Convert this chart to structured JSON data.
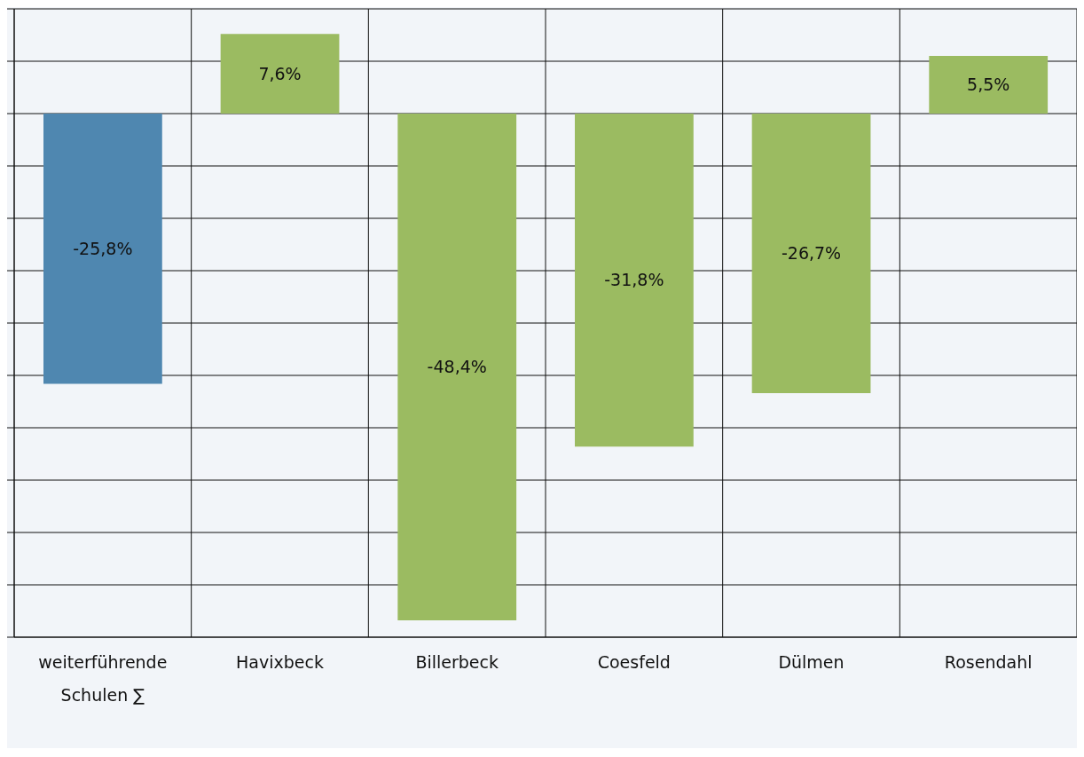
{
  "chart_data": {
    "type": "bar",
    "categories": [
      "weiterführende Schulen ∑",
      "Havixbeck",
      "Billerbeck",
      "Coesfeld",
      "Dülmen",
      "Rosendahl"
    ],
    "values": [
      -25.8,
      7.6,
      -48.4,
      -31.8,
      -26.7,
      5.5
    ],
    "colors": [
      "#4f87b0",
      "#9bbb61",
      "#9bbb61",
      "#9bbb61",
      "#9bbb61",
      "#9bbb61"
    ],
    "value_labels": [
      "-25,8%",
      "7,6%",
      "-48,4%",
      "-31,8%",
      "-26,7%",
      "5,5%"
    ],
    "ylim": [
      -50,
      10
    ],
    "yticks": [
      {
        "value": -50,
        "label": null
      },
      {
        "value": -45,
        "label": null
      },
      {
        "value": -40,
        "label": null
      },
      {
        "value": -35,
        "label": null
      },
      {
        "value": -30,
        "label": null
      },
      {
        "value": -25,
        "label": null
      },
      {
        "value": -20,
        "label": null
      },
      {
        "value": -15,
        "label": null
      },
      {
        "value": -10,
        "label": null
      },
      {
        "value": -5,
        "label": null
      },
      {
        "value": 0,
        "label": null
      },
      {
        "value": 5,
        "label": null
      },
      {
        "value": 10,
        "label": null
      }
    ],
    "tick_labels": "x",
    "grid": true
  }
}
